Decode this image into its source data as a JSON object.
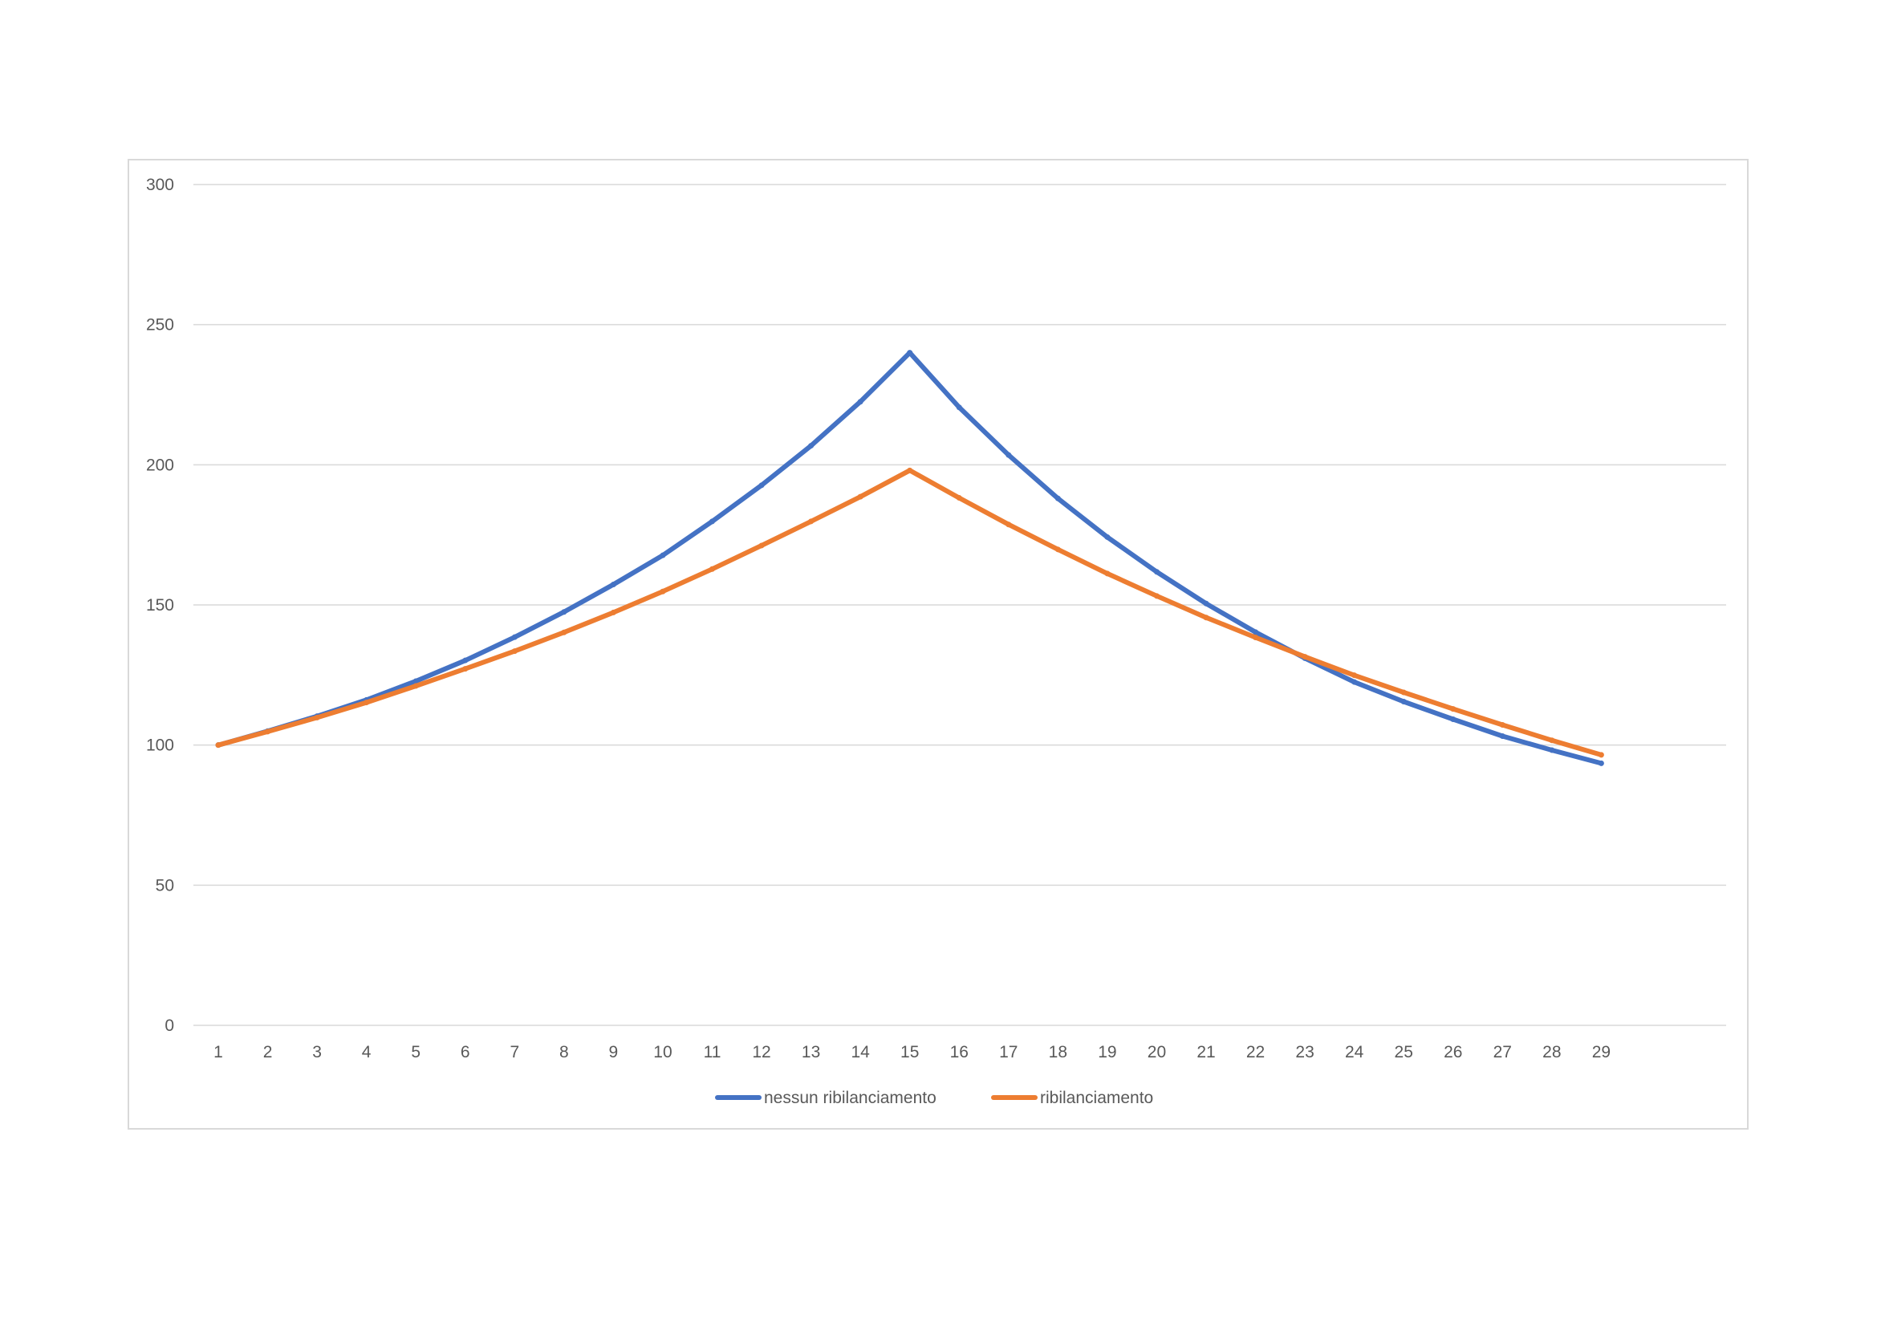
{
  "chart_data": {
    "type": "line",
    "title": "",
    "xlabel": "",
    "ylabel": "",
    "categories": [
      "1",
      "2",
      "3",
      "4",
      "5",
      "6",
      "7",
      "8",
      "9",
      "10",
      "11",
      "12",
      "13",
      "14",
      "15",
      "16",
      "17",
      "18",
      "19",
      "20",
      "21",
      "22",
      "23",
      "24",
      "25",
      "26",
      "27",
      "28",
      "29"
    ],
    "ylim": [
      0,
      300
    ],
    "yticks": [
      "0",
      "50",
      "100",
      "150",
      "200",
      "250",
      "300"
    ],
    "grid": true,
    "legend_position": "bottom",
    "series": [
      {
        "name": "nessun ribilanciamento",
        "color": "#4472C4",
        "values": [
          100,
          105,
          110.3,
          116.1,
          122.8,
          130.2,
          138.5,
          147.5,
          157.3,
          167.7,
          179.8,
          192.7,
          206.8,
          222.5,
          240,
          220.5,
          203.5,
          188,
          174.2,
          161.8,
          150.5,
          140.3,
          131,
          122.5,
          115.5,
          109.2,
          103.2,
          98.2,
          93.5
        ]
      },
      {
        "name": "ribilanciamento",
        "color": "#ED7D31",
        "values": [
          100,
          104.8,
          109.8,
          115.2,
          121.1,
          127.2,
          133.5,
          140.2,
          147.3,
          154.8,
          162.8,
          171.2,
          179.8,
          188.6,
          198,
          188.2,
          178.7,
          169.8,
          161.2,
          153.2,
          145.5,
          138.4,
          131.5,
          124.9,
          118.8,
          112.9,
          107.2,
          101.7,
          96.5
        ]
      }
    ]
  }
}
